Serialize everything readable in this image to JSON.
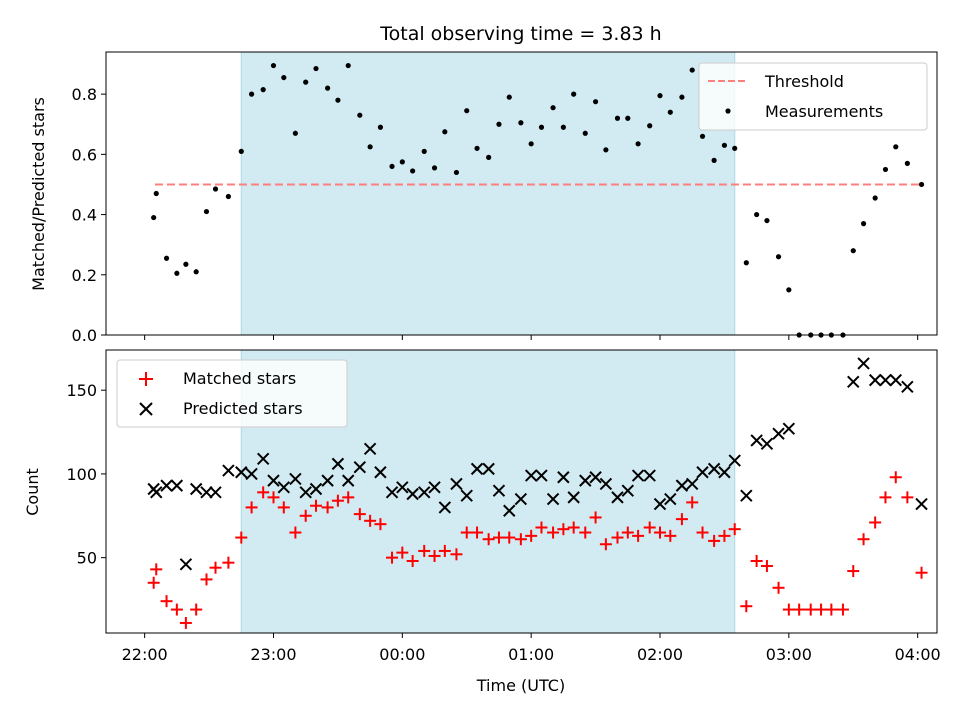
{
  "chart_data": [
    {
      "type": "scatter",
      "title": "Total observing time = 3.83 h",
      "xlabel": "",
      "ylabel": "Matched/Predicted stars",
      "x_unit": "hours since 22:00 UTC (axis shows clock time)",
      "xlim": [
        21.7,
        28.15
      ],
      "ylim": [
        0,
        0.94
      ],
      "yticks": [
        0.0,
        0.2,
        0.4,
        0.6,
        0.8
      ],
      "ytick_labels": [
        "0.0",
        "0.2",
        "0.4",
        "0.6",
        "0.8"
      ],
      "xticks": [
        22,
        23,
        24,
        25,
        26,
        27,
        28
      ],
      "shaded_interval": [
        22.75,
        26.58
      ],
      "shaded_color": "#add8e6",
      "legend_position": "upper right",
      "series": [
        {
          "name": "Threshold",
          "kind": "dashed-line",
          "color": "#ff7f7f",
          "x": [
            22.08,
            28.03
          ],
          "y": [
            0.5,
            0.5
          ]
        },
        {
          "name": "Measurements",
          "kind": "dots",
          "color": "#000000",
          "points": [
            [
              22.07,
              0.39
            ],
            [
              22.09,
              0.47
            ],
            [
              22.17,
              0.255
            ],
            [
              22.25,
              0.205
            ],
            [
              22.32,
              0.235
            ],
            [
              22.4,
              0.21
            ],
            [
              22.48,
              0.41
            ],
            [
              22.55,
              0.485
            ],
            [
              22.65,
              0.46
            ],
            [
              22.75,
              0.61
            ],
            [
              22.83,
              0.8
            ],
            [
              22.92,
              0.815
            ],
            [
              23.0,
              0.895
            ],
            [
              23.08,
              0.855
            ],
            [
              23.17,
              0.67
            ],
            [
              23.25,
              0.84
            ],
            [
              23.33,
              0.885
            ],
            [
              23.42,
              0.82
            ],
            [
              23.5,
              0.78
            ],
            [
              23.58,
              0.895
            ],
            [
              23.67,
              0.73
            ],
            [
              23.75,
              0.625
            ],
            [
              23.83,
              0.69
            ],
            [
              23.92,
              0.56
            ],
            [
              24.0,
              0.575
            ],
            [
              24.08,
              0.545
            ],
            [
              24.17,
              0.61
            ],
            [
              24.25,
              0.555
            ],
            [
              24.33,
              0.675
            ],
            [
              24.42,
              0.54
            ],
            [
              24.5,
              0.745
            ],
            [
              24.58,
              0.62
            ],
            [
              24.67,
              0.59
            ],
            [
              24.75,
              0.7
            ],
            [
              24.83,
              0.79
            ],
            [
              24.92,
              0.705
            ],
            [
              25.0,
              0.635
            ],
            [
              25.08,
              0.69
            ],
            [
              25.17,
              0.755
            ],
            [
              25.25,
              0.69
            ],
            [
              25.33,
              0.8
            ],
            [
              25.42,
              0.67
            ],
            [
              25.5,
              0.775
            ],
            [
              25.58,
              0.615
            ],
            [
              25.67,
              0.72
            ],
            [
              25.75,
              0.72
            ],
            [
              25.83,
              0.635
            ],
            [
              25.92,
              0.695
            ],
            [
              26.0,
              0.795
            ],
            [
              26.08,
              0.74
            ],
            [
              26.17,
              0.79
            ],
            [
              26.25,
              0.88
            ],
            [
              26.33,
              0.66
            ],
            [
              26.42,
              0.58
            ],
            [
              26.5,
              0.63
            ],
            [
              26.58,
              0.62
            ],
            [
              26.67,
              0.24
            ],
            [
              26.75,
              0.4
            ],
            [
              26.83,
              0.38
            ],
            [
              26.92,
              0.26
            ],
            [
              27.0,
              0.15
            ],
            [
              27.08,
              0.0
            ],
            [
              27.17,
              0.0
            ],
            [
              27.25,
              0.0
            ],
            [
              27.33,
              0.0
            ],
            [
              27.42,
              0.0
            ],
            [
              27.5,
              0.28
            ],
            [
              27.58,
              0.37
            ],
            [
              27.67,
              0.455
            ],
            [
              27.75,
              0.55
            ],
            [
              27.83,
              0.625
            ],
            [
              27.92,
              0.57
            ],
            [
              28.03,
              0.5
            ]
          ]
        }
      ]
    },
    {
      "type": "scatter",
      "title": "",
      "xlabel": "Time (UTC)",
      "ylabel": "Count",
      "xlim": [
        21.7,
        28.15
      ],
      "ylim": [
        5,
        174
      ],
      "yticks": [
        50,
        100,
        150
      ],
      "ytick_labels": [
        "50",
        "100",
        "150"
      ],
      "xticks": [
        22,
        23,
        24,
        25,
        26,
        27,
        28
      ],
      "xtick_labels": [
        "22:00",
        "23:00",
        "00:00",
        "01:00",
        "02:00",
        "03:00",
        "04:00"
      ],
      "shaded_interval": [
        22.75,
        26.58
      ],
      "shaded_color": "#add8e6",
      "legend_position": "upper left",
      "series": [
        {
          "name": "Matched stars",
          "kind": "plus",
          "color": "#ff0000",
          "points": [
            [
              22.07,
              35
            ],
            [
              22.09,
              43
            ],
            [
              22.17,
              24
            ],
            [
              22.25,
              19
            ],
            [
              22.32,
              11
            ],
            [
              22.4,
              19
            ],
            [
              22.48,
              37
            ],
            [
              22.55,
              44
            ],
            [
              22.65,
              47
            ],
            [
              22.75,
              62
            ],
            [
              22.83,
              80
            ],
            [
              22.92,
              89
            ],
            [
              23.0,
              86
            ],
            [
              23.08,
              80
            ],
            [
              23.17,
              65
            ],
            [
              23.25,
              75
            ],
            [
              23.33,
              81
            ],
            [
              23.42,
              80
            ],
            [
              23.5,
              84
            ],
            [
              23.58,
              86
            ],
            [
              23.67,
              76
            ],
            [
              23.75,
              72
            ],
            [
              23.83,
              70
            ],
            [
              23.92,
              50
            ],
            [
              24.0,
              53
            ],
            [
              24.08,
              48
            ],
            [
              24.17,
              54
            ],
            [
              24.25,
              51
            ],
            [
              24.33,
              54
            ],
            [
              24.42,
              52
            ],
            [
              24.5,
              65
            ],
            [
              24.58,
              65
            ],
            [
              24.67,
              61
            ],
            [
              24.75,
              62
            ],
            [
              24.83,
              62
            ],
            [
              24.92,
              61
            ],
            [
              25.0,
              63
            ],
            [
              25.08,
              68
            ],
            [
              25.17,
              65
            ],
            [
              25.25,
              67
            ],
            [
              25.33,
              68
            ],
            [
              25.42,
              65
            ],
            [
              25.5,
              74
            ],
            [
              25.58,
              58
            ],
            [
              25.67,
              62
            ],
            [
              25.75,
              65
            ],
            [
              25.83,
              63
            ],
            [
              25.92,
              68
            ],
            [
              26.0,
              65
            ],
            [
              26.08,
              63
            ],
            [
              26.17,
              73
            ],
            [
              26.25,
              83
            ],
            [
              26.33,
              65
            ],
            [
              26.42,
              60
            ],
            [
              26.5,
              63
            ],
            [
              26.58,
              67
            ],
            [
              26.67,
              21
            ],
            [
              26.75,
              48
            ],
            [
              26.83,
              45
            ],
            [
              26.92,
              32
            ],
            [
              27.0,
              19
            ],
            [
              27.08,
              19
            ],
            [
              27.17,
              19
            ],
            [
              27.25,
              19
            ],
            [
              27.33,
              19
            ],
            [
              27.42,
              19
            ],
            [
              27.5,
              42
            ],
            [
              27.58,
              61
            ],
            [
              27.67,
              71
            ],
            [
              27.75,
              86
            ],
            [
              27.83,
              98
            ],
            [
              27.92,
              86
            ],
            [
              28.03,
              41
            ]
          ]
        },
        {
          "name": "Predicted stars",
          "kind": "x",
          "color": "#000000",
          "points": [
            [
              22.07,
              91
            ],
            [
              22.09,
              89
            ],
            [
              22.17,
              93
            ],
            [
              22.25,
              93
            ],
            [
              22.32,
              46
            ],
            [
              22.4,
              91
            ],
            [
              22.48,
              89
            ],
            [
              22.55,
              89
            ],
            [
              22.65,
              102
            ],
            [
              22.75,
              101
            ],
            [
              22.83,
              100
            ],
            [
              22.92,
              109
            ],
            [
              23.0,
              96
            ],
            [
              23.08,
              92
            ],
            [
              23.17,
              97
            ],
            [
              23.25,
              89
            ],
            [
              23.33,
              91
            ],
            [
              23.42,
              96
            ],
            [
              23.5,
              106
            ],
            [
              23.58,
              96
            ],
            [
              23.67,
              104
            ],
            [
              23.75,
              115
            ],
            [
              23.83,
              101
            ],
            [
              23.92,
              89
            ],
            [
              24.0,
              92
            ],
            [
              24.08,
              88
            ],
            [
              24.17,
              89
            ],
            [
              24.25,
              92
            ],
            [
              24.33,
              80
            ],
            [
              24.42,
              94
            ],
            [
              24.5,
              87
            ],
            [
              24.58,
              103
            ],
            [
              24.67,
              103
            ],
            [
              24.75,
              90
            ],
            [
              24.83,
              78
            ],
            [
              24.92,
              85
            ],
            [
              25.0,
              99
            ],
            [
              25.08,
              99
            ],
            [
              25.17,
              85
            ],
            [
              25.25,
              98
            ],
            [
              25.33,
              86
            ],
            [
              25.42,
              96
            ],
            [
              25.5,
              98
            ],
            [
              25.58,
              94
            ],
            [
              25.67,
              86
            ],
            [
              25.75,
              90
            ],
            [
              25.83,
              99
            ],
            [
              25.92,
              99
            ],
            [
              26.0,
              82
            ],
            [
              26.08,
              85
            ],
            [
              26.17,
              93
            ],
            [
              26.25,
              94
            ],
            [
              26.33,
              101
            ],
            [
              26.42,
              103
            ],
            [
              26.5,
              101
            ],
            [
              26.58,
              108
            ],
            [
              26.67,
              87
            ],
            [
              26.75,
              120
            ],
            [
              26.83,
              118
            ],
            [
              26.92,
              124
            ],
            [
              27.0,
              127
            ],
            [
              27.5,
              155
            ],
            [
              27.58,
              166
            ],
            [
              27.67,
              156
            ],
            [
              27.75,
              156
            ],
            [
              27.83,
              156
            ],
            [
              27.92,
              152
            ],
            [
              28.03,
              82
            ]
          ]
        }
      ]
    }
  ]
}
